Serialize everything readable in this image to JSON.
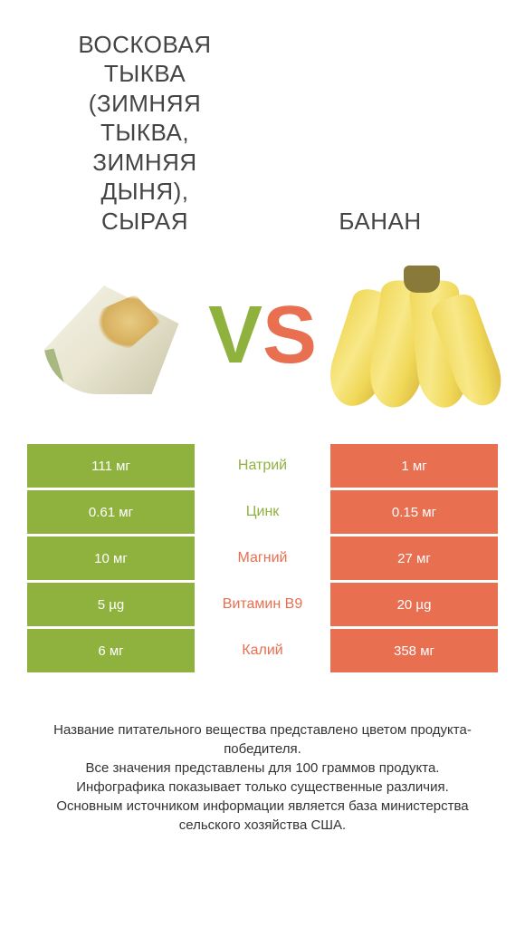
{
  "colors": {
    "left": "#8fb23f",
    "right": "#e96f51",
    "row_gap": "#ffffff",
    "text_on_color": "#ffffff"
  },
  "items": {
    "left": {
      "title": "ВОСКОВАЯ\nТЫКВА\n(ЗИМНЯЯ\nТЫКВА,\nЗИМНЯЯ\nДЫНЯ),\nСЫРАЯ"
    },
    "right": {
      "title": "БАНАН"
    }
  },
  "vs": {
    "v": "V",
    "s": "S"
  },
  "nutrients": [
    {
      "name": "Натрий",
      "left": "111 мг",
      "right": "1 мг",
      "winner": "left"
    },
    {
      "name": "Цинк",
      "left": "0.61 мг",
      "right": "0.15 мг",
      "winner": "left"
    },
    {
      "name": "Магний",
      "left": "10 мг",
      "right": "27 мг",
      "winner": "right"
    },
    {
      "name": "Витамин B9",
      "left": "5 µg",
      "right": "20 µg",
      "winner": "right"
    },
    {
      "name": "Калий",
      "left": "6 мг",
      "right": "358 мг",
      "winner": "right"
    }
  ],
  "footer": {
    "l1": "Название питательного вещества представлено цветом продукта-победителя.",
    "l2": "Все значения представлены для 100 граммов продукта.",
    "l3": "Инфографика показывает только существенные различия.",
    "l4": "Основным источником информации является база министерства сельского хозяйства США."
  }
}
